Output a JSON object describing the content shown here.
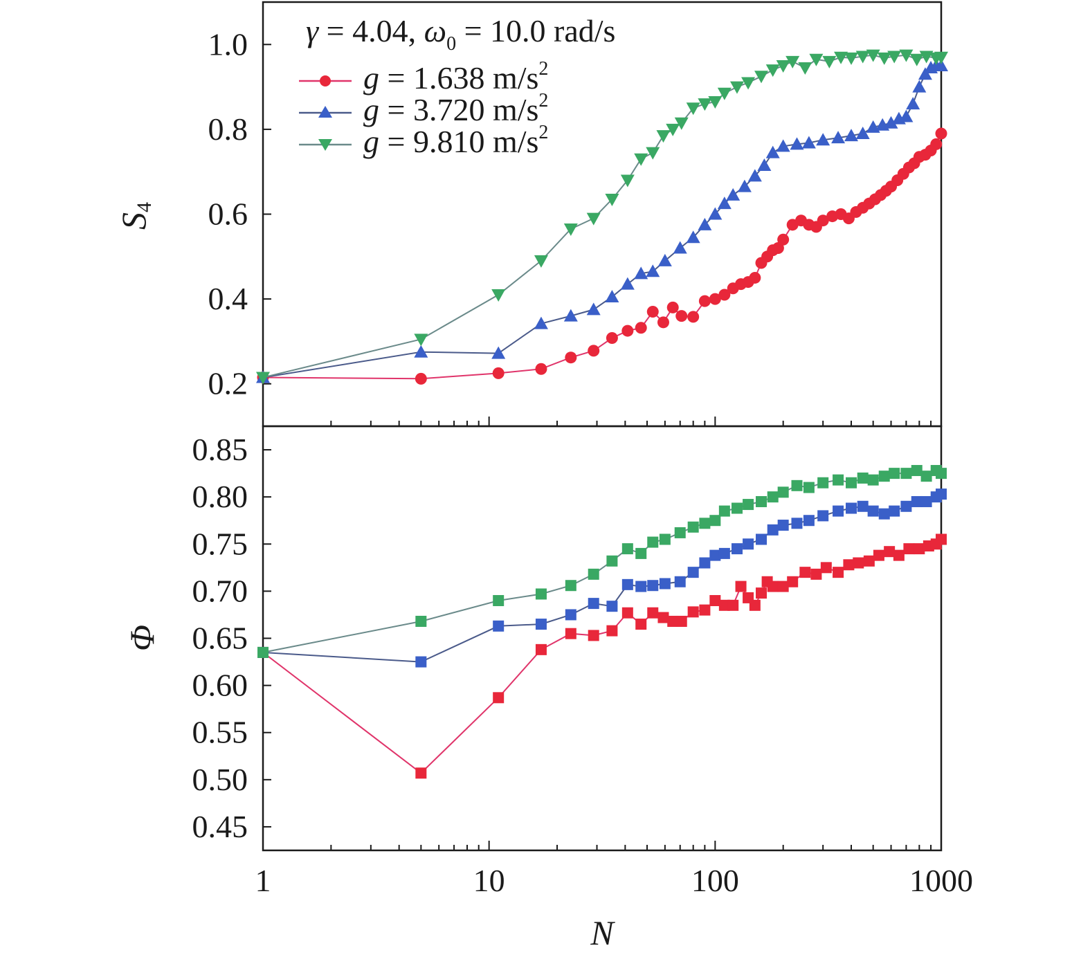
{
  "chart_data": {
    "type": "line",
    "annotation": {
      "gamma_sym": "γ",
      "gamma_eq": " = 4.04, ",
      "omega_sym": "ω",
      "omega_sub": "0",
      "omega_eq": " = 10.0 rad/s"
    },
    "xlabel": "N",
    "xscale": "log",
    "xlim": [
      1,
      1000
    ],
    "xticks": [
      "1",
      "10",
      "100",
      "1000"
    ],
    "legend_position": "top-left",
    "series_styles": [
      {
        "name": "g = 1.638 m/s2",
        "legend_prefix": "g",
        "legend_value": " = 1.638 m/s",
        "legend_sup": "2",
        "color": "#e8273a",
        "line_color": "#e0346a",
        "top_marker": "circle"
      },
      {
        "name": "g = 3.720 m/s2",
        "legend_prefix": "g",
        "legend_value": " = 3.720 m/s",
        "legend_sup": "2",
        "color": "#3a5fc8",
        "line_color": "#4a5a8a",
        "top_marker": "triangle-up"
      },
      {
        "name": "g = 9.810 m/s2",
        "legend_prefix": "g",
        "legend_value": " = 9.810 m/s",
        "legend_sup": "2",
        "color": "#3aa863",
        "line_color": "#6a8a8a",
        "top_marker": "triangle-down"
      }
    ],
    "panels": [
      {
        "ylabel": "S",
        "ylabel_sub": "4",
        "ylim": [
          0.1,
          1.1
        ],
        "yticks": [
          0.2,
          0.4,
          0.6,
          0.8,
          1.0
        ],
        "ytick_labels": [
          "0.2",
          "0.4",
          "0.6",
          "0.8",
          "1.0"
        ],
        "series": [
          {
            "name": "g = 1.638 m/s2",
            "x": [
              1,
              5,
              11,
              17,
              23,
              29,
              35,
              41,
              47,
              53,
              59,
              65,
              71,
              80,
              90,
              100,
              110,
              120,
              130,
              140,
              150,
              160,
              170,
              180,
              190,
              200,
              220,
              240,
              260,
              280,
              300,
              330,
              360,
              390,
              420,
              450,
              480,
              510,
              540,
              570,
              600,
              640,
              680,
              720,
              760,
              800,
              850,
              900,
              950,
              1000
            ],
            "y": [
              0.215,
              0.212,
              0.225,
              0.235,
              0.262,
              0.278,
              0.308,
              0.325,
              0.332,
              0.37,
              0.345,
              0.38,
              0.36,
              0.358,
              0.395,
              0.4,
              0.41,
              0.425,
              0.435,
              0.44,
              0.45,
              0.485,
              0.5,
              0.515,
              0.52,
              0.54,
              0.575,
              0.585,
              0.575,
              0.57,
              0.585,
              0.595,
              0.6,
              0.59,
              0.605,
              0.615,
              0.625,
              0.635,
              0.645,
              0.655,
              0.665,
              0.68,
              0.695,
              0.71,
              0.72,
              0.735,
              0.74,
              0.75,
              0.765,
              0.79
            ]
          },
          {
            "name": "g = 3.720 m/s2",
            "x": [
              1,
              5,
              11,
              17,
              23,
              29,
              35,
              41,
              47,
              53,
              60,
              70,
              80,
              90,
              100,
              110,
              120,
              135,
              150,
              165,
              180,
              200,
              230,
              260,
              300,
              350,
              400,
              450,
              500,
              550,
              600,
              650,
              700,
              750,
              800,
              850,
              900,
              950,
              1000
            ],
            "y": [
              0.215,
              0.275,
              0.272,
              0.342,
              0.36,
              0.375,
              0.405,
              0.435,
              0.46,
              0.465,
              0.49,
              0.52,
              0.545,
              0.575,
              0.6,
              0.625,
              0.645,
              0.665,
              0.69,
              0.715,
              0.745,
              0.76,
              0.765,
              0.768,
              0.775,
              0.78,
              0.785,
              0.79,
              0.805,
              0.81,
              0.815,
              0.825,
              0.83,
              0.86,
              0.9,
              0.93,
              0.945,
              0.95,
              0.95
            ]
          },
          {
            "name": "g = 9.810 m/s2",
            "x": [
              1,
              5,
              11,
              17,
              23,
              29,
              35,
              41,
              47,
              53,
              59,
              65,
              71,
              80,
              90,
              100,
              110,
              125,
              140,
              160,
              180,
              200,
              220,
              250,
              280,
              320,
              360,
              400,
              450,
              500,
              560,
              620,
              700,
              780,
              860,
              950,
              1000
            ],
            "y": [
              0.215,
              0.305,
              0.41,
              0.49,
              0.565,
              0.59,
              0.635,
              0.68,
              0.73,
              0.745,
              0.785,
              0.8,
              0.815,
              0.85,
              0.86,
              0.865,
              0.885,
              0.9,
              0.91,
              0.925,
              0.94,
              0.95,
              0.96,
              0.945,
              0.965,
              0.96,
              0.97,
              0.968,
              0.972,
              0.975,
              0.968,
              0.972,
              0.975,
              0.965,
              0.972,
              0.968,
              0.97
            ]
          }
        ]
      },
      {
        "ylabel": "Φ",
        "ylabel_sub": "",
        "ylim": [
          0.425,
          0.875
        ],
        "yticks": [
          0.45,
          0.5,
          0.55,
          0.6,
          0.65,
          0.7,
          0.75,
          0.8,
          0.85
        ],
        "ytick_labels": [
          "0.45",
          "0.50",
          "0.55",
          "0.60",
          "0.65",
          "0.70",
          "0.75",
          "0.80",
          "0.85"
        ],
        "series": [
          {
            "name": "g = 1.638 m/s2",
            "x": [
              1,
              5,
              11,
              17,
              23,
              29,
              35,
              41,
              47,
              53,
              59,
              65,
              71,
              80,
              90,
              100,
              110,
              120,
              130,
              140,
              150,
              160,
              170,
              180,
              200,
              220,
              250,
              280,
              310,
              350,
              390,
              430,
              480,
              530,
              590,
              650,
              720,
              800,
              880,
              950,
              1000
            ],
            "y": [
              0.635,
              0.507,
              0.587,
              0.638,
              0.655,
              0.653,
              0.658,
              0.677,
              0.665,
              0.677,
              0.672,
              0.668,
              0.668,
              0.678,
              0.68,
              0.69,
              0.685,
              0.685,
              0.705,
              0.693,
              0.685,
              0.698,
              0.71,
              0.705,
              0.705,
              0.71,
              0.72,
              0.718,
              0.725,
              0.72,
              0.728,
              0.73,
              0.732,
              0.738,
              0.742,
              0.738,
              0.745,
              0.745,
              0.748,
              0.75,
              0.755
            ]
          },
          {
            "name": "g = 3.720 m/s2",
            "x": [
              1,
              5,
              11,
              17,
              23,
              29,
              35,
              41,
              47,
              53,
              60,
              70,
              80,
              90,
              100,
              110,
              125,
              140,
              160,
              180,
              200,
              230,
              260,
              300,
              350,
              400,
              450,
              500,
              560,
              620,
              700,
              780,
              860,
              950,
              1000
            ],
            "y": [
              0.635,
              0.625,
              0.663,
              0.665,
              0.675,
              0.687,
              0.684,
              0.707,
              0.705,
              0.706,
              0.708,
              0.71,
              0.72,
              0.73,
              0.738,
              0.74,
              0.745,
              0.75,
              0.755,
              0.765,
              0.77,
              0.772,
              0.775,
              0.78,
              0.785,
              0.788,
              0.79,
              0.785,
              0.782,
              0.785,
              0.79,
              0.795,
              0.795,
              0.8,
              0.803
            ]
          },
          {
            "name": "g = 9.810 m/s2",
            "x": [
              1,
              5,
              11,
              17,
              23,
              29,
              35,
              41,
              47,
              53,
              60,
              70,
              80,
              90,
              100,
              110,
              125,
              140,
              160,
              180,
              200,
              230,
              260,
              300,
              350,
              400,
              450,
              500,
              560,
              620,
              700,
              780,
              860,
              950,
              1000
            ],
            "y": [
              0.635,
              0.668,
              0.69,
              0.697,
              0.706,
              0.718,
              0.732,
              0.745,
              0.74,
              0.752,
              0.755,
              0.762,
              0.768,
              0.772,
              0.775,
              0.785,
              0.788,
              0.792,
              0.795,
              0.8,
              0.805,
              0.812,
              0.81,
              0.815,
              0.818,
              0.815,
              0.82,
              0.818,
              0.822,
              0.825,
              0.825,
              0.828,
              0.822,
              0.828,
              0.825
            ]
          }
        ]
      }
    ]
  }
}
